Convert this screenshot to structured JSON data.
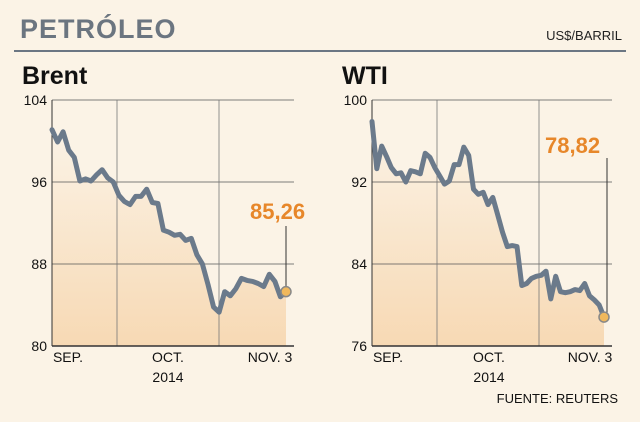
{
  "header": {
    "title": "PETRÓLEO",
    "unit": "US$/BARRIL"
  },
  "source": "FUENTE: REUTERS",
  "colors": {
    "line": "#6b7a8b",
    "accent": "#e7872a",
    "marker_fill": "#f0b85c",
    "background": "#fbf3e6"
  },
  "chart_data": [
    {
      "type": "line",
      "title": "Brent",
      "ylim": [
        80,
        104
      ],
      "yticks": [
        "104",
        "96",
        "88",
        "80"
      ],
      "xlabels": [
        {
          "text": "SEP.",
          "sub": ""
        },
        {
          "text": "OCT.",
          "sub": "2014"
        },
        {
          "text": "NOV. 3",
          "sub": ""
        }
      ],
      "grid": "vertical month dividers",
      "last_value": "85,26",
      "series": [
        {
          "values": [
            101.1,
            99.9,
            100.9,
            99.1,
            98.4,
            96.1,
            96.3,
            96.1,
            96.7,
            97.2,
            96.4,
            96.0,
            94.7,
            94.1,
            93.8,
            94.6,
            94.6,
            95.3,
            94.0,
            93.9,
            91.3,
            91.1,
            90.8,
            90.9,
            90.3,
            90.5,
            88.9,
            88.0,
            86.0,
            83.8,
            83.3,
            85.3,
            84.9,
            85.6,
            86.6,
            86.4,
            86.3,
            86.1,
            85.8,
            87.0,
            86.3,
            84.8,
            85.3
          ]
        }
      ]
    },
    {
      "type": "line",
      "title": "WTI",
      "ylim": [
        76,
        100
      ],
      "yticks": [
        "100",
        "92",
        "84",
        "76"
      ],
      "xlabels": [
        {
          "text": "SEP.",
          "sub": ""
        },
        {
          "text": "OCT.",
          "sub": "2014"
        },
        {
          "text": "NOV. 3",
          "sub": ""
        }
      ],
      "grid": "vertical month dividers",
      "last_value": "78,82",
      "series": [
        {
          "values": [
            97.9,
            93.3,
            95.5,
            94.5,
            93.4,
            92.8,
            92.9,
            92.0,
            93.1,
            93.0,
            92.8,
            94.8,
            94.4,
            93.4,
            92.6,
            91.8,
            92.1,
            93.7,
            93.7,
            95.4,
            94.6,
            91.3,
            90.8,
            91.0,
            89.8,
            90.5,
            88.8,
            87.1,
            85.7,
            85.8,
            85.7,
            81.9,
            82.1,
            82.6,
            82.8,
            82.9,
            83.3,
            80.6,
            82.8,
            81.3,
            81.2,
            81.3,
            81.5,
            81.4,
            82.1,
            80.9,
            80.5,
            80.0,
            78.82
          ]
        }
      ]
    }
  ]
}
